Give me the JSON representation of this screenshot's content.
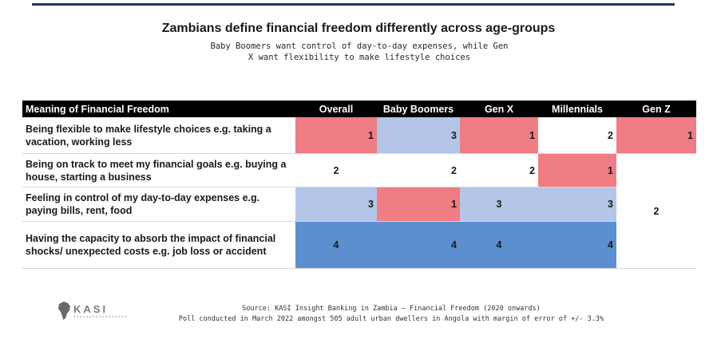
{
  "title": "Zambians define financial freedom differently across age-groups",
  "subtitle": "Baby Boomers want control of day-to-day expenses, while Gen X want flexibility to make lifestyle choices",
  "chart_data": {
    "type": "table",
    "title": "Zambians define financial freedom differently across age-groups",
    "subtitle": "Baby Boomers want control of day-to-day expenses, while Gen X want flexibility to make lifestyle choices",
    "header_label": "Meaning of Financial Freedom",
    "columns": [
      "Overall",
      "Baby Boomers",
      "Gen X",
      "Millennials",
      "Gen Z"
    ],
    "rows": [
      {
        "label": "Being flexible to make lifestyle choices e.g. taking a vacation, working less",
        "values": [
          "1",
          "3",
          "1",
          "2",
          "1"
        ]
      },
      {
        "label": "Being on track to meet my financial goals e.g. buying a house, starting a business",
        "values": [
          "2",
          "2",
          "2",
          "1",
          "2"
        ]
      },
      {
        "label": "Feeling in control of my day-to-day expenses e.g. paying bills, rent, food",
        "values": [
          "3",
          "1",
          "3",
          "3",
          "2"
        ]
      },
      {
        "label": "Having the capacity to absorb the impact of financial shocks/ unexpected costs e.g. job loss or accident",
        "values": [
          "4",
          "4",
          "4",
          "4",
          "2"
        ]
      }
    ],
    "gen_z_merged_value": "2",
    "rank_colors": {
      "1": "#f07c84",
      "2": "#ffffff",
      "3": "#b4c6e7",
      "4": "#5b8fd0"
    }
  },
  "footer": {
    "logo_text": "KASI",
    "source": "Source: KASI Insight Banking in Zambia – Financial Freedom (2020 onwards)",
    "poll": "Poll conducted in March 2022 amongst 505 adult urban dwellers in Angola with margin of error of +/- 3.3%"
  }
}
